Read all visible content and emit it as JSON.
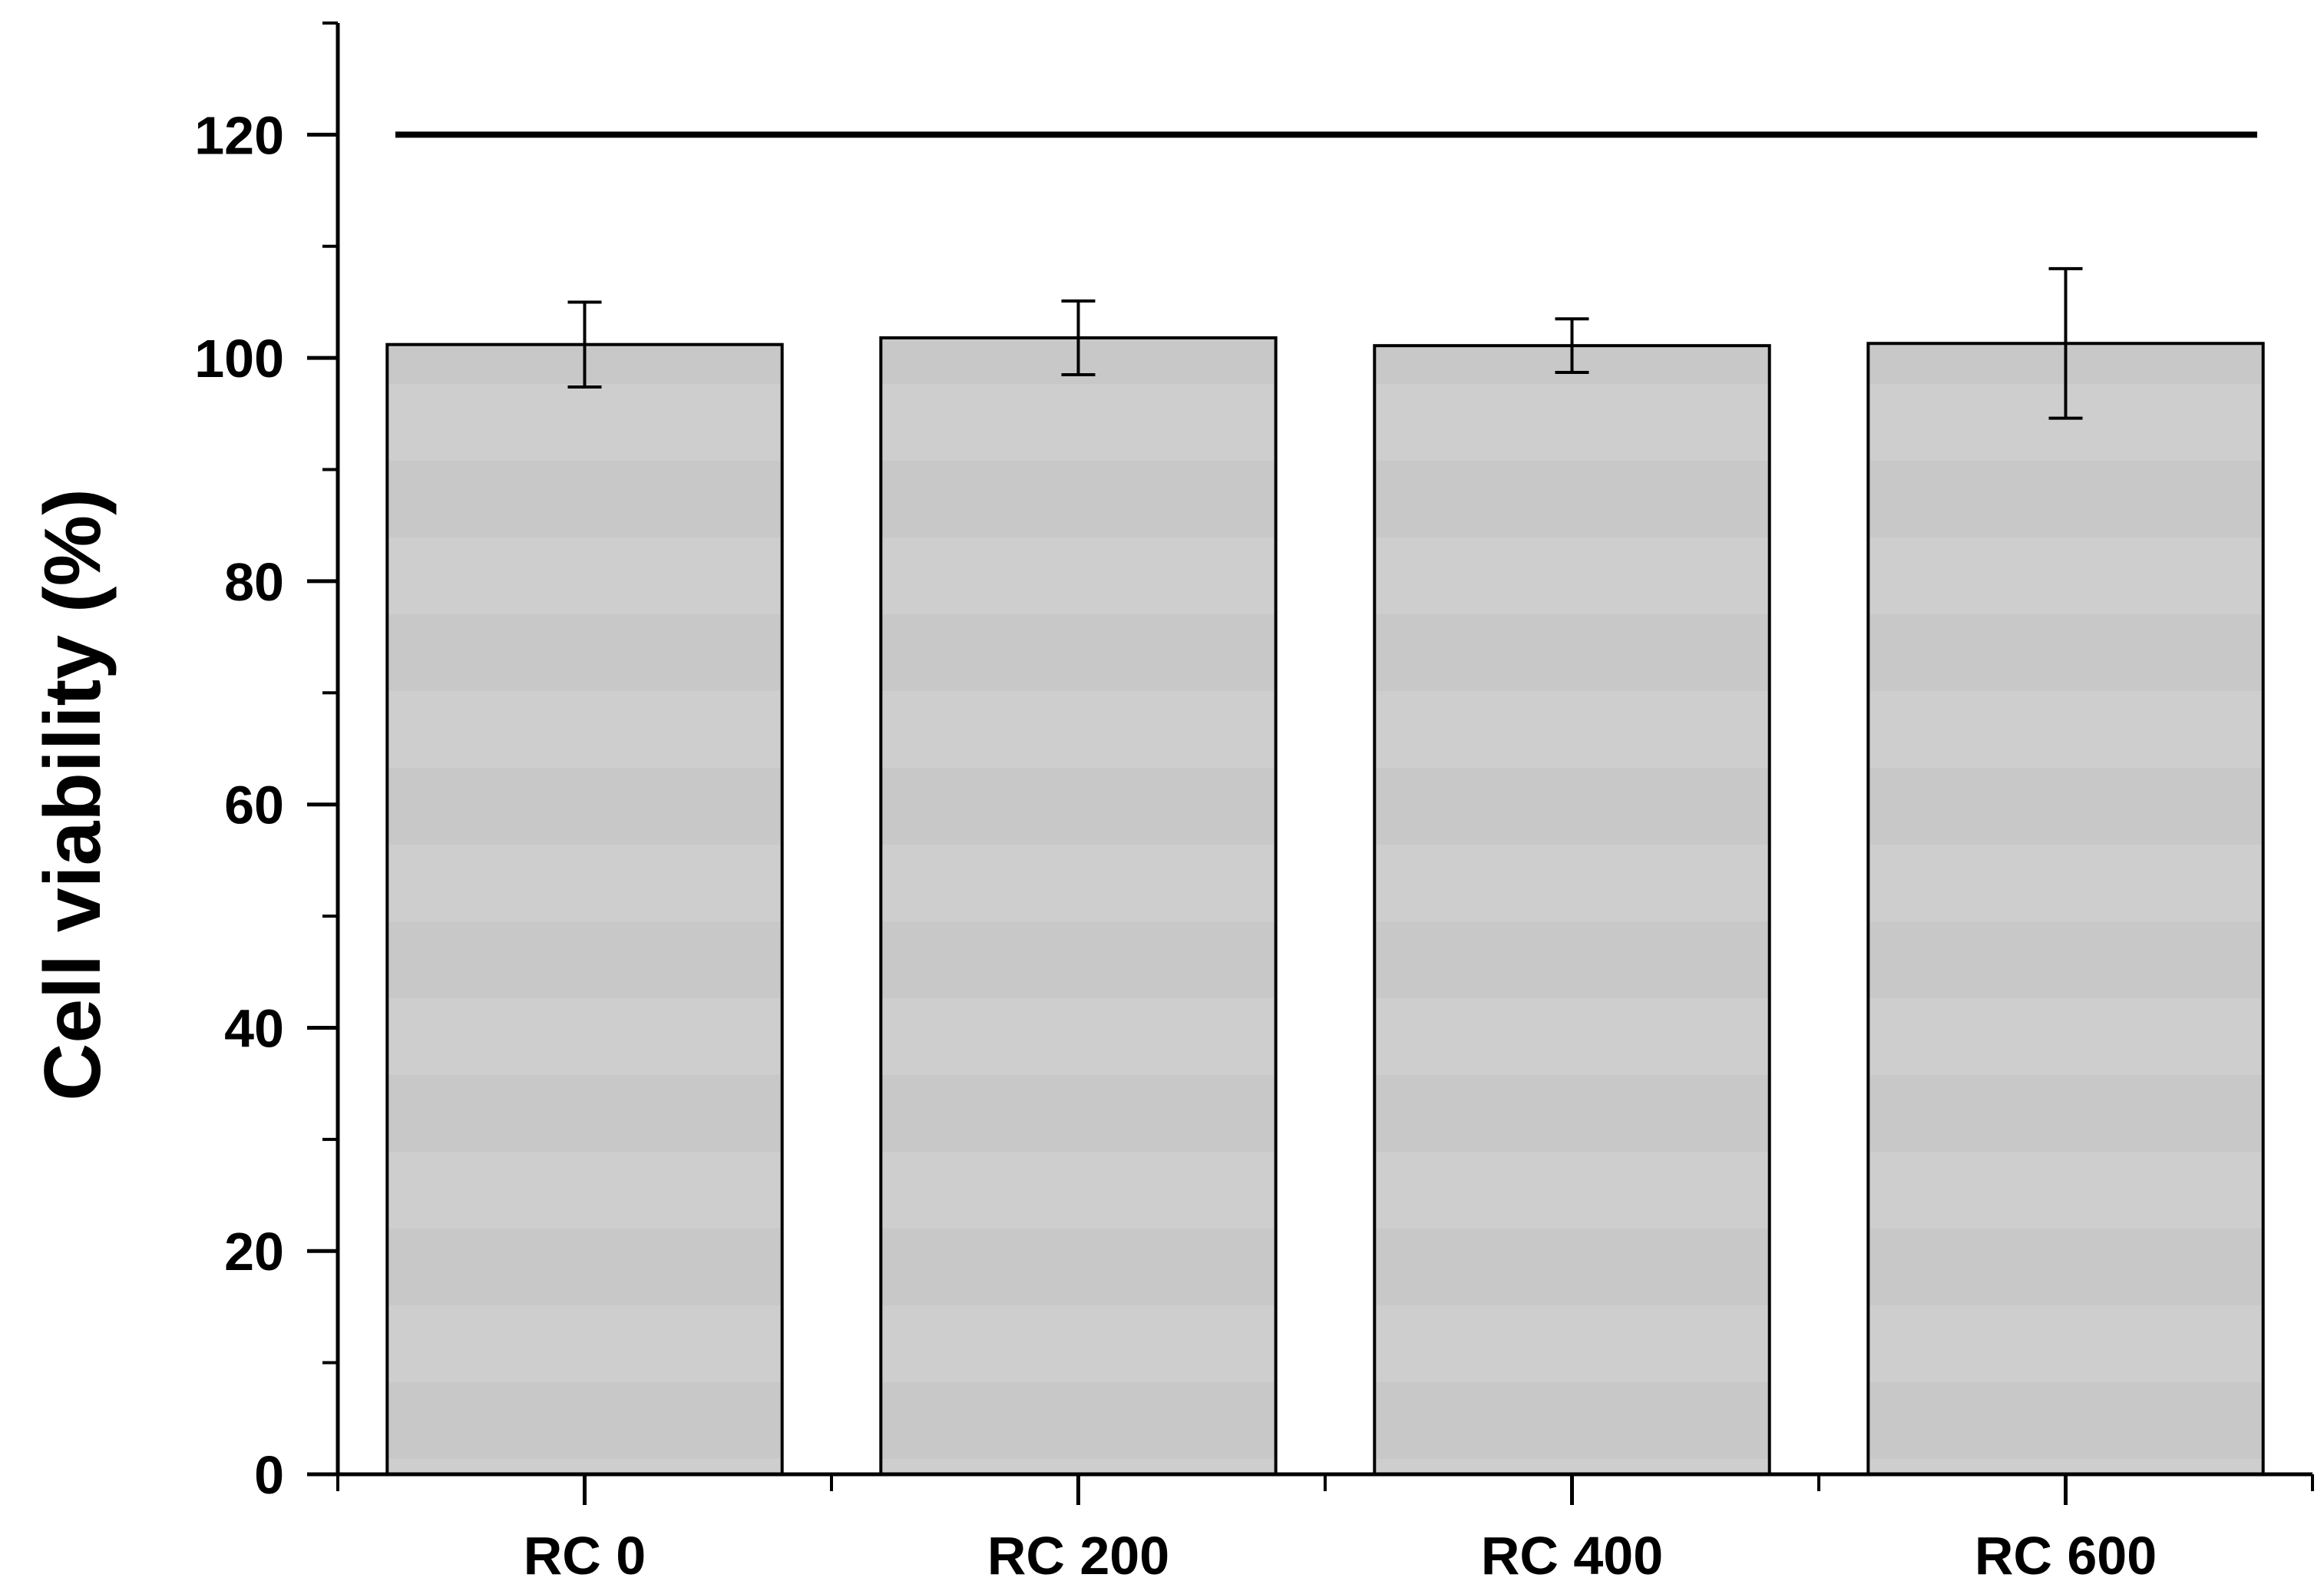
{
  "chart_data": {
    "type": "bar",
    "title": "",
    "xlabel": "",
    "ylabel": "Cell viability (%)",
    "categories": [
      "RC 0",
      "RC 200",
      "RC 400",
      "RC 600"
    ],
    "values": [
      101.2,
      101.8,
      101.1,
      101.3
    ],
    "errors": [
      3.8,
      3.3,
      2.4,
      6.7
    ],
    "ylim": [
      0,
      130
    ],
    "y_ticks": [
      0,
      20,
      40,
      60,
      80,
      100,
      120
    ],
    "y_minor_step": 10,
    "reference_line": {
      "y": 120
    },
    "grid": false,
    "legend": "none",
    "colors": {
      "bar_fill": "#c8c8c8",
      "bar_stripe": "#cecece",
      "bar_edge": "#000000",
      "axis": "#000000",
      "error_bar": "#000000",
      "reference_line": "#000000"
    }
  }
}
